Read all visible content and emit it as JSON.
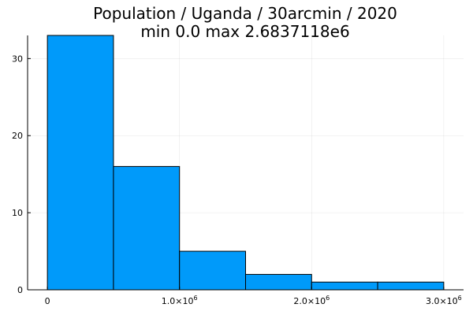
{
  "chart_data": {
    "type": "bar",
    "title": "Population / Uganda / 30arcmin / 2020",
    "subtitle": "min 0.0  max 2.6837118e6",
    "xlabel": "",
    "ylabel": "",
    "bins": [
      {
        "x0": 0,
        "x1": 500000,
        "count": 33
      },
      {
        "x0": 500000,
        "x1": 1000000,
        "count": 16
      },
      {
        "x0": 1000000,
        "x1": 1500000,
        "count": 5
      },
      {
        "x0": 1500000,
        "x1": 2000000,
        "count": 2
      },
      {
        "x0": 2000000,
        "x1": 2500000,
        "count": 1
      },
      {
        "x0": 2500000,
        "x1": 3000000,
        "count": 1
      }
    ],
    "xlim": [
      -150000,
      3150000
    ],
    "ylim": [
      0,
      33
    ],
    "xticks": [
      {
        "value": 0,
        "mantissa": "0",
        "exponent": ""
      },
      {
        "value": 1000000,
        "mantissa": "1.0×10",
        "exponent": "6"
      },
      {
        "value": 2000000,
        "mantissa": "2.0×10",
        "exponent": "6"
      },
      {
        "value": 3000000,
        "mantissa": "3.0×10",
        "exponent": "6"
      }
    ],
    "yticks": [
      0,
      10,
      20,
      30
    ],
    "grid": true,
    "legend": "none",
    "bar_color": "#009AFA"
  }
}
